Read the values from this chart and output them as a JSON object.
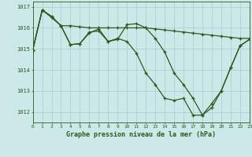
{
  "title": "Graphe pression niveau de la mer (hPa)",
  "background_color": "#cce8e8",
  "line_color": "#2d5a1b",
  "series": [
    {
      "x": [
        0,
        1,
        2,
        3,
        4,
        5,
        6,
        7,
        8,
        9,
        10,
        11,
        12,
        13,
        14,
        15,
        16,
        17,
        18,
        19,
        20,
        21,
        22,
        23
      ],
      "y": [
        1014.95,
        1016.85,
        1016.55,
        1016.1,
        1016.1,
        1016.05,
        1016.0,
        1016.0,
        1016.0,
        1016.0,
        1016.0,
        1016.0,
        1016.0,
        1015.95,
        1015.9,
        1015.85,
        1015.8,
        1015.75,
        1015.7,
        1015.65,
        1015.6,
        1015.55,
        1015.5,
        1015.5
      ]
    },
    {
      "x": [
        0,
        1,
        2,
        3,
        4,
        5,
        6,
        7,
        8,
        9,
        10,
        11,
        12,
        13,
        14,
        15,
        16,
        17,
        18,
        19,
        20,
        21,
        22,
        23
      ],
      "y": [
        1014.95,
        1016.85,
        1016.5,
        1016.1,
        1015.2,
        1015.25,
        1015.8,
        1015.85,
        1015.35,
        1015.45,
        1016.15,
        1016.2,
        1016.0,
        1015.5,
        1014.85,
        1013.85,
        1013.3,
        1012.65,
        1011.85,
        1012.2,
        1013.0,
        1014.1,
        1015.15,
        1015.45
      ]
    },
    {
      "x": [
        0,
        1,
        2,
        3,
        4,
        5,
        6,
        7,
        8,
        9,
        10,
        11,
        12,
        13,
        14,
        15,
        16,
        17,
        18,
        19,
        20,
        21,
        22,
        23
      ],
      "y": [
        1014.95,
        1016.85,
        1016.5,
        1016.1,
        1015.2,
        1015.25,
        1015.75,
        1015.95,
        1015.35,
        1015.5,
        1015.35,
        1014.8,
        1013.85,
        1013.3,
        1012.65,
        1012.55,
        1012.65,
        1011.85,
        1011.85,
        1012.4,
        1013.0,
        1014.1,
        1015.15,
        1015.45
      ]
    }
  ],
  "xlim": [
    0,
    23
  ],
  "ylim": [
    1011.5,
    1017.25
  ],
  "yticks": [
    1012,
    1013,
    1014,
    1015,
    1016,
    1017
  ],
  "xticks": [
    0,
    1,
    2,
    3,
    4,
    5,
    6,
    7,
    8,
    9,
    10,
    11,
    12,
    13,
    14,
    15,
    16,
    17,
    18,
    19,
    20,
    21,
    22,
    23
  ],
  "grid_color": "#aacccc",
  "marker": "+",
  "markersize": 3.5,
  "linewidth": 0.9
}
